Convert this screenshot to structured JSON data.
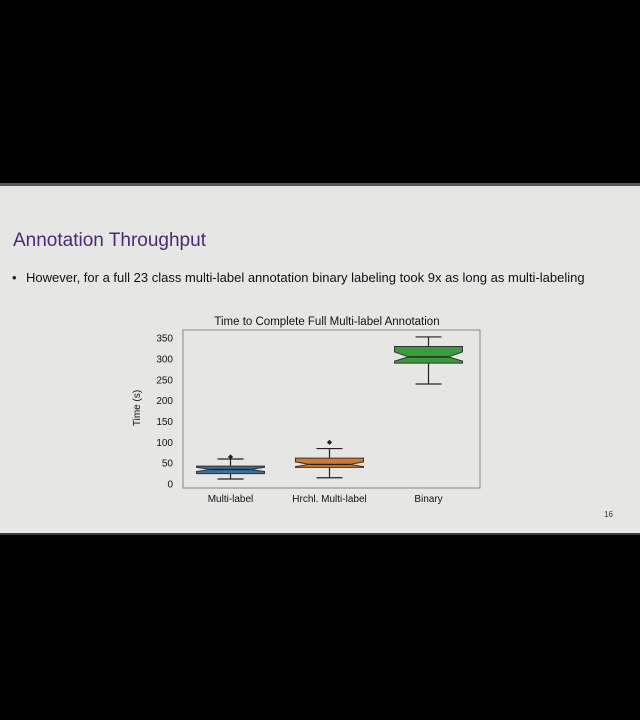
{
  "slide": {
    "title": "Annotation Throughput",
    "bullet_marker": "•",
    "bullet": "However, for a full 23 class multi-label annotation binary labeling took 9x as long as multi-labeling",
    "page_number": "16"
  },
  "chart_data": {
    "type": "box",
    "title": "Time to Complete Full Multi-label Annotation",
    "xlabel": "",
    "ylabel": "Time (s)",
    "ylim": [
      0,
      360
    ],
    "yticks": [
      0,
      50,
      100,
      150,
      200,
      250,
      300,
      350
    ],
    "categories": [
      "Multi-label",
      "Hrchl. Multi-label",
      "Binary"
    ],
    "boxes": [
      {
        "category": "Multi-label",
        "whisker_low": 12,
        "q1": 25,
        "median": 35,
        "q3": 43,
        "whisker_high": 60,
        "notch_low": 30,
        "notch_high": 40,
        "outliers": [
          65
        ],
        "color": "#3d6e9c"
      },
      {
        "category": "Hrchl. Multi-label",
        "whisker_low": 15,
        "q1": 40,
        "median": 47,
        "q3": 62,
        "whisker_high": 85,
        "notch_low": 42,
        "notch_high": 53,
        "outliers": [
          100
        ],
        "color": "#d27a2c"
      },
      {
        "category": "Binary",
        "whisker_low": 240,
        "q1": 290,
        "median": 305,
        "q3": 330,
        "whisker_high": 353,
        "notch_low": 295,
        "notch_high": 317,
        "outliers": [],
        "color": "#3c9a3c"
      }
    ],
    "grid": false
  }
}
